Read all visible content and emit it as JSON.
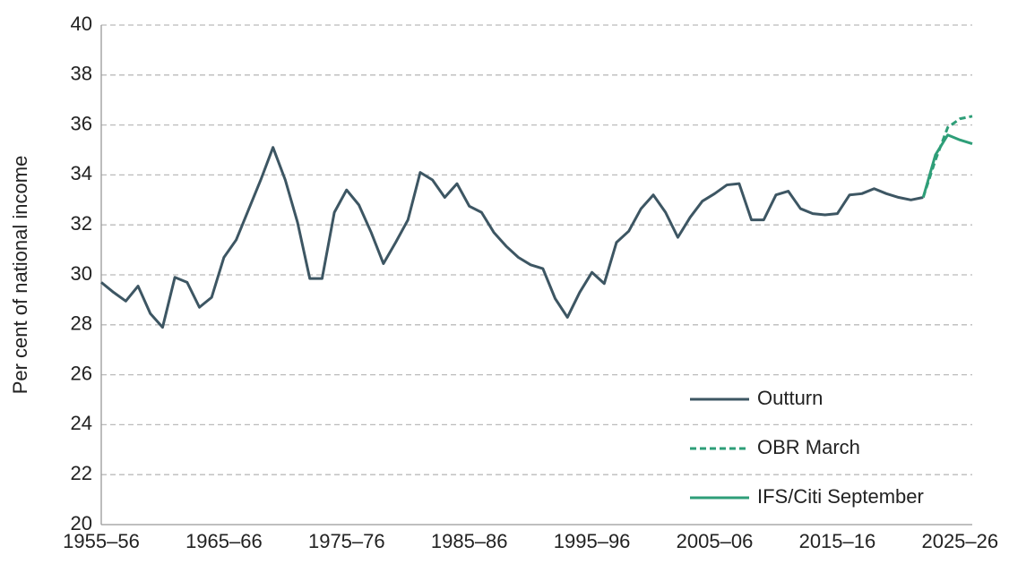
{
  "chart_data": {
    "type": "line",
    "y_label": "Per cent of national income",
    "categories": [
      "1955–56",
      null,
      null,
      null,
      null,
      null,
      null,
      null,
      null,
      null,
      "1965–66",
      null,
      null,
      null,
      null,
      null,
      null,
      null,
      null,
      null,
      "1975–76",
      null,
      null,
      null,
      null,
      null,
      null,
      null,
      null,
      null,
      "1985–86",
      null,
      null,
      null,
      null,
      null,
      null,
      null,
      null,
      null,
      "1995–96",
      null,
      null,
      null,
      null,
      null,
      null,
      null,
      null,
      null,
      "2005–06",
      null,
      null,
      null,
      null,
      null,
      null,
      null,
      null,
      null,
      "2015–16",
      null,
      null,
      null,
      null,
      null,
      null,
      null,
      null,
      null,
      "2025–26",
      null
    ],
    "series": [
      {
        "name": "Outturn",
        "color": "#3d5663",
        "dashed": false,
        "values": [
          29.7,
          29.3,
          28.95,
          29.55,
          28.45,
          27.9,
          29.9,
          29.7,
          28.7,
          29.1,
          30.7,
          31.4,
          32.6,
          33.8,
          35.1,
          33.8,
          32.1,
          29.85,
          29.85,
          32.5,
          33.4,
          32.8,
          31.7,
          30.45,
          31.3,
          32.2,
          34.1,
          33.8,
          33.1,
          33.65,
          32.75,
          32.5,
          31.7,
          31.15,
          30.7,
          30.4,
          30.25,
          29.05,
          28.3,
          29.3,
          30.1,
          29.65,
          31.3,
          31.75,
          32.65,
          33.2,
          32.5,
          31.5,
          32.3,
          32.95,
          33.25,
          33.6,
          33.65,
          32.2,
          32.2,
          33.2,
          33.35,
          32.65,
          32.45,
          32.4,
          32.45,
          33.2,
          33.25,
          33.45,
          33.25,
          33.1,
          33.0,
          33.1,
          null,
          null,
          null,
          null
        ]
      },
      {
        "name": "OBR March",
        "color": "#2e9e78",
        "dashed": true,
        "values": [
          null,
          null,
          null,
          null,
          null,
          null,
          null,
          null,
          null,
          null,
          null,
          null,
          null,
          null,
          null,
          null,
          null,
          null,
          null,
          null,
          null,
          null,
          null,
          null,
          null,
          null,
          null,
          null,
          null,
          null,
          null,
          null,
          null,
          null,
          null,
          null,
          null,
          null,
          null,
          null,
          null,
          null,
          null,
          null,
          null,
          null,
          null,
          null,
          null,
          null,
          null,
          null,
          null,
          null,
          null,
          null,
          null,
          null,
          null,
          null,
          null,
          null,
          null,
          null,
          null,
          null,
          null,
          33.1,
          34.6,
          35.9,
          36.25,
          36.35
        ]
      },
      {
        "name": "IFS/Citi September",
        "color": "#2e9e78",
        "dashed": false,
        "values": [
          null,
          null,
          null,
          null,
          null,
          null,
          null,
          null,
          null,
          null,
          null,
          null,
          null,
          null,
          null,
          null,
          null,
          null,
          null,
          null,
          null,
          null,
          null,
          null,
          null,
          null,
          null,
          null,
          null,
          null,
          null,
          null,
          null,
          null,
          null,
          null,
          null,
          null,
          null,
          null,
          null,
          null,
          null,
          null,
          null,
          null,
          null,
          null,
          null,
          null,
          null,
          null,
          null,
          null,
          null,
          null,
          null,
          null,
          null,
          null,
          null,
          null,
          null,
          null,
          null,
          null,
          null,
          33.1,
          34.8,
          35.6,
          35.4,
          35.25
        ]
      }
    ],
    "ylim": [
      20,
      40
    ],
    "yticks": [
      20,
      22,
      24,
      26,
      28,
      30,
      32,
      34,
      36,
      38,
      40
    ],
    "grid": true,
    "legend": "lower-right"
  }
}
